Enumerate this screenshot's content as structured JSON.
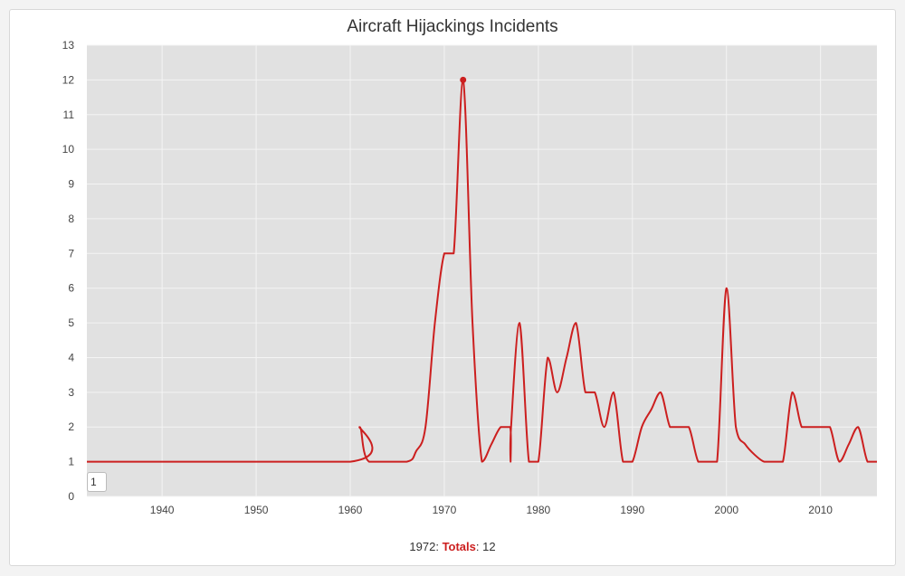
{
  "chart_data": {
    "type": "line",
    "title": "Aircraft Hijackings Incidents",
    "xlabel": "",
    "ylabel": "",
    "xlim": [
      1932,
      2016
    ],
    "ylim": [
      0,
      13
    ],
    "x_ticks": [
      1940,
      1950,
      1960,
      1970,
      1980,
      1990,
      2000,
      2010
    ],
    "y_ticks": [
      0,
      1,
      2,
      3,
      4,
      5,
      6,
      7,
      8,
      9,
      10,
      11,
      12,
      13
    ],
    "grid": true,
    "series": [
      {
        "name": "Totals",
        "color": "#cc1f1f",
        "x": [
          1932,
          1960,
          1961,
          1962,
          1966,
          1967,
          1968,
          1969,
          1970,
          1971,
          1972,
          1973,
          1974,
          1975,
          1976,
          1977,
          1977.05,
          1977.1,
          1978,
          1979,
          1980,
          1981,
          1982,
          1983,
          1984,
          1985,
          1986,
          1987,
          1988,
          1989,
          1990,
          1991,
          1992,
          1993,
          1994,
          1995,
          1996,
          1997,
          1998,
          1999,
          2000,
          2001,
          2002,
          2003,
          2004,
          2005,
          2006,
          2007,
          2008,
          2009,
          2010,
          2011,
          2012,
          2013,
          2014,
          2015,
          2016
        ],
        "y": [
          1,
          1,
          2,
          1,
          1,
          1.3,
          2,
          5,
          7,
          7,
          12,
          5,
          1,
          1.5,
          2,
          2,
          1,
          2,
          5,
          1,
          1,
          4,
          3,
          4,
          5,
          3,
          3,
          2,
          3,
          1,
          1,
          2,
          2.5,
          3,
          2,
          2,
          2,
          1,
          1,
          1,
          6,
          2,
          1.5,
          1.2,
          1,
          1,
          1,
          3,
          2,
          2,
          2,
          2,
          1,
          1.5,
          2,
          1,
          1
        ]
      }
    ],
    "highlight": {
      "x": 1972,
      "y": 12
    }
  },
  "range_input": {
    "value": "1"
  },
  "footer": {
    "year": "1972",
    "separator": ":",
    "series_name": "Totals",
    "value_sep": ":",
    "value": "12"
  },
  "colors": {
    "plot_bg": "#e1e1e1",
    "grid": "#f4f4f4",
    "line": "#cc1f1f"
  }
}
